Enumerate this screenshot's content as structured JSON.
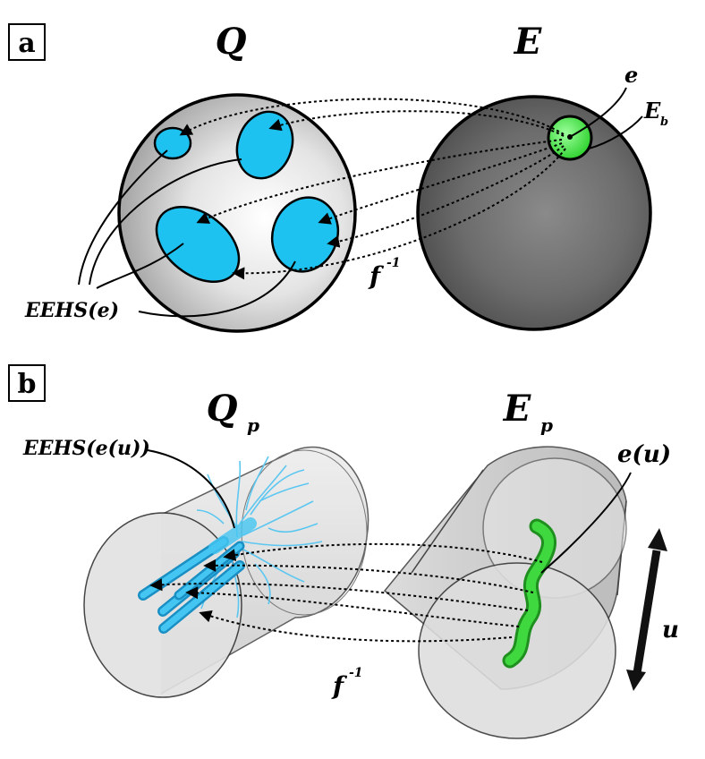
{
  "panel_a": {
    "tag": "a",
    "left_title": "Q",
    "right_title": "E",
    "point_label": "e",
    "ball_label": "E",
    "ball_label_sub": "b",
    "region_label": "EEHS(e)",
    "map_label": "f",
    "map_label_sup": "-1",
    "colors": {
      "region": "#1ec2f0",
      "ball": "#39e639",
      "left_sphere": "#d6d6d6",
      "right_sphere": "#6e6e6e"
    }
  },
  "panel_b": {
    "tag": "b",
    "left_title": "Q",
    "left_title_sub": "p",
    "right_title": "E",
    "right_title_sub": "p",
    "region_label": "EEHS(e(u))",
    "curve_label": "e(u)",
    "param_label": "u",
    "map_label": "f",
    "map_label_sup": "-1",
    "colors": {
      "tubes": "#22aee6",
      "curve": "#2ecc2e",
      "cylinder": "#cfcfcf"
    }
  }
}
